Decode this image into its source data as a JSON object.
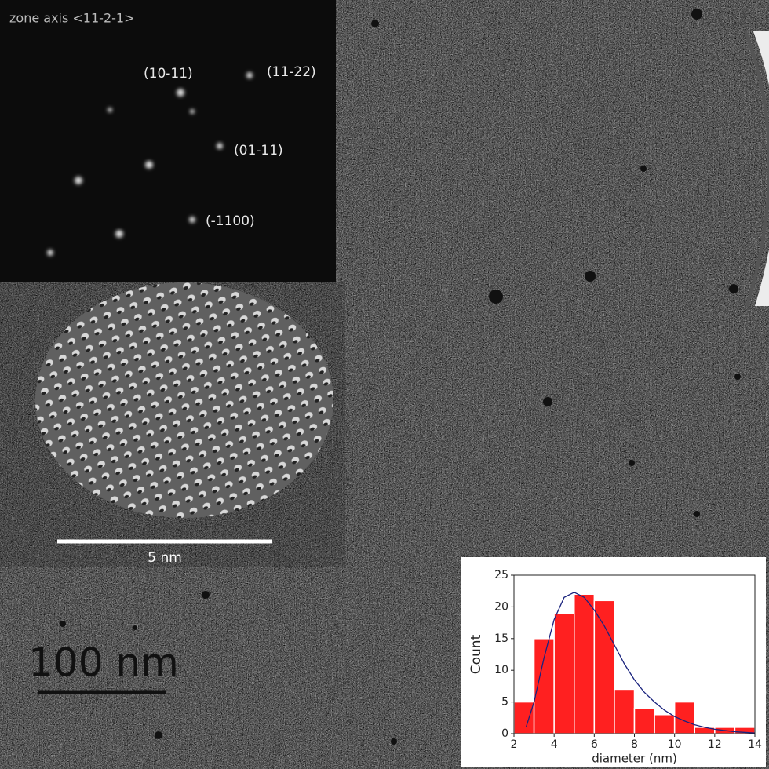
{
  "fft": {
    "title": "zone axis <11-2-1>",
    "labels": [
      "(10-11)",
      "(11-22)",
      "(01-11)",
      "(-1100)"
    ]
  },
  "hrtem_scale_bar": "5 nm",
  "main_scale_bar": "100 nm",
  "chart_data": {
    "type": "histogram",
    "xlabel": "diameter (nm)",
    "ylabel": "Count",
    "bins": [
      2,
      3,
      4,
      5,
      6,
      7,
      8,
      9,
      10,
      11,
      12,
      13,
      14
    ],
    "values": [
      5,
      15,
      19,
      22,
      21,
      7,
      4,
      3,
      5,
      1,
      1,
      1
    ],
    "color": "#ff2020",
    "fit": {
      "color": "#1a237e",
      "x": [
        2.6,
        3,
        3.5,
        4,
        4.5,
        5,
        5.5,
        6,
        6.5,
        7,
        7.5,
        8,
        8.5,
        9,
        9.5,
        10,
        10.5,
        11,
        11.5,
        12,
        13,
        14
      ],
      "values": [
        1,
        5,
        12,
        18,
        21.5,
        22.3,
        21.5,
        19.5,
        17,
        14,
        11,
        8.5,
        6.5,
        5,
        3.7,
        2.7,
        2,
        1.4,
        1,
        0.7,
        0.3,
        0.1
      ]
    },
    "xlim": [
      2,
      14
    ],
    "xticks": [
      2,
      4,
      6,
      8,
      10,
      12,
      14
    ],
    "ylim": [
      0,
      25
    ],
    "yticks": [
      0,
      5,
      10,
      15,
      20,
      25
    ]
  }
}
